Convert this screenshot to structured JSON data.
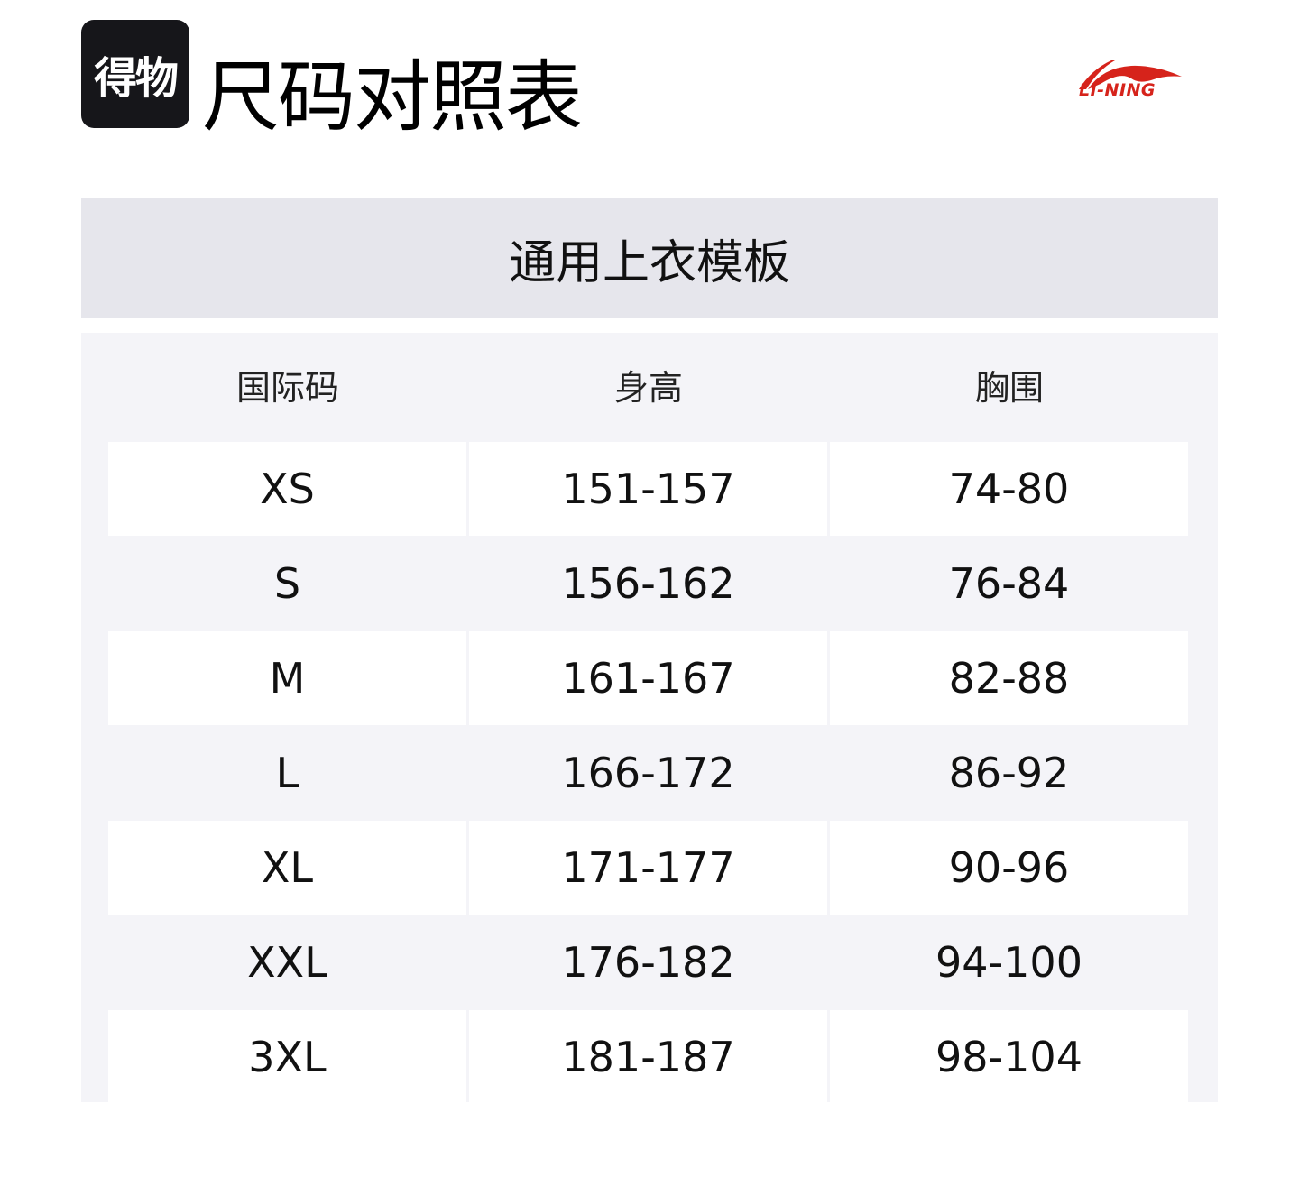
{
  "header": {
    "app_logo_text": "得物",
    "title": "尺码对照表",
    "brand_logo_text": "LI-NING",
    "brand_color": "#d6231b"
  },
  "table": {
    "template_title": "通用上衣模板",
    "columns": [
      "国际码",
      "身高",
      "胸围"
    ],
    "rows": [
      [
        "XS",
        "151-157",
        "74-80"
      ],
      [
        "S",
        "156-162",
        "76-84"
      ],
      [
        "M",
        "161-167",
        "82-88"
      ],
      [
        "L",
        "166-172",
        "86-92"
      ],
      [
        "XL",
        "171-177",
        "90-96"
      ],
      [
        "XXL",
        "176-182",
        "94-100"
      ],
      [
        "3XL",
        "181-187",
        "98-104"
      ]
    ]
  }
}
